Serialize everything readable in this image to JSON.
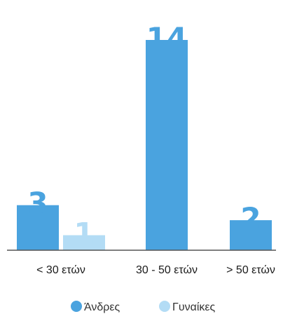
{
  "chart_data": {
    "type": "bar",
    "categories": [
      "< 30 ετών",
      "30 - 50 ετών",
      "> 50 ετών"
    ],
    "series": [
      {
        "name": "Άνδρες",
        "values": [
          3,
          14,
          2
        ],
        "color": "#4aa3df"
      },
      {
        "name": "Γυναίκες",
        "values": [
          1,
          null,
          null
        ],
        "color": "#b3dcf5"
      }
    ],
    "ylim": [
      0,
      14
    ],
    "grid": false,
    "legend_position": "bottom-center",
    "baseline_color": "#555555"
  }
}
